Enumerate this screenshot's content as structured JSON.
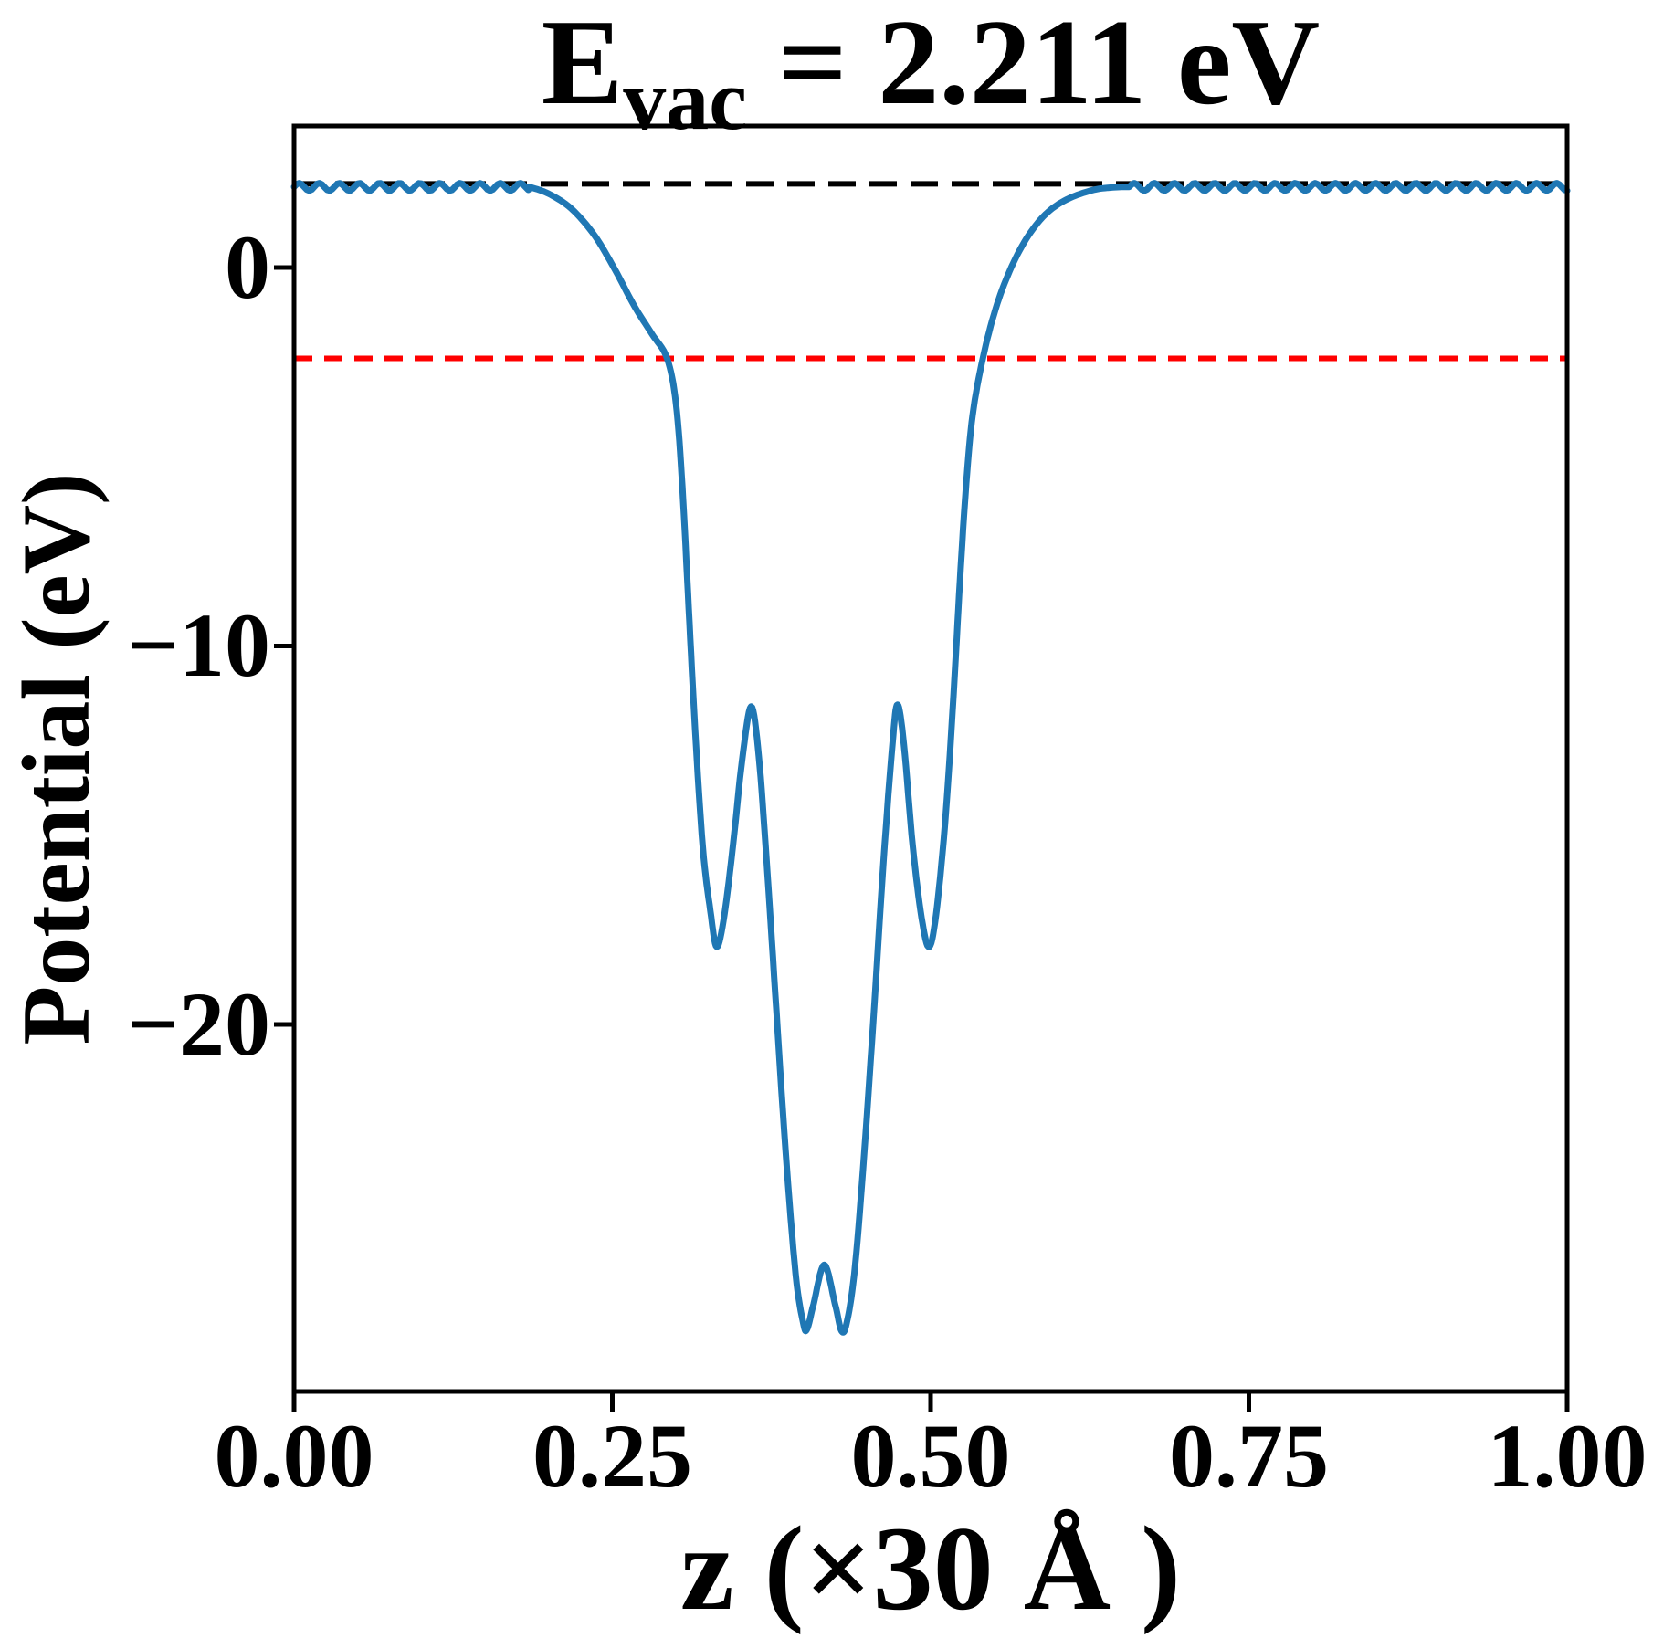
{
  "chart_data": {
    "type": "line",
    "title": {
      "prefix": "E",
      "subscript": "vac",
      "rest": " = 2.211 eV",
      "full": "E_vac = 2.211 eV"
    },
    "xlabel": "z (×30 Å )",
    "ylabel": "Potential (eV)",
    "xlim": [
      0,
      1
    ],
    "ylim": [
      -29.7,
      3.74
    ],
    "grid": false,
    "legend": "none",
    "x_ticks": {
      "values": [
        0,
        0.25,
        0.5,
        0.75,
        1.0
      ],
      "labels": [
        "0.00",
        "0.25",
        "0.50",
        "0.75",
        "1.00"
      ]
    },
    "y_ticks": {
      "values": [
        0,
        -10,
        -20
      ],
      "labels": [
        "0",
        "−10",
        "−20"
      ]
    },
    "colors": {
      "curve": "#1f77b4",
      "vacuum_line": "#000000",
      "reference_line": "#ff0000",
      "axes": "#000000"
    },
    "vacuum_energy_eV": 2.211,
    "reference_lines": [
      {
        "name": "vacuum-level",
        "value": 2.211,
        "color": "#000000",
        "style": "dashed",
        "dash": "30 15"
      },
      {
        "name": "fermi-level",
        "value": -2.4,
        "color": "#ff0000",
        "style": "dashed",
        "dash": "20 13"
      }
    ],
    "series": [
      {
        "name": "planar-averaged-potential",
        "color": "#1f77b4",
        "plateau": {
          "level": 2.211,
          "draw_mean": 2.13,
          "ripple_amplitude": 0.1,
          "ripple_period": 0.0158,
          "segments": [
            [
              0,
              0.185
            ],
            [
              0.656,
              1.0
            ]
          ]
        },
        "well_points": [
          [
            0.185,
            2.13
          ],
          [
            0.2,
            1.95
          ],
          [
            0.218,
            1.55
          ],
          [
            0.236,
            0.85
          ],
          [
            0.252,
            -0.05
          ],
          [
            0.267,
            -1.0
          ],
          [
            0.281,
            -1.75
          ],
          [
            0.293,
            -2.4
          ],
          [
            0.3,
            -3.6
          ],
          [
            0.305,
            -5.8
          ],
          [
            0.31,
            -9.0
          ],
          [
            0.315,
            -12.2
          ],
          [
            0.321,
            -15.3
          ],
          [
            0.327,
            -17.0
          ],
          [
            0.332,
            -17.95
          ],
          [
            0.338,
            -17.1
          ],
          [
            0.345,
            -15.2
          ],
          [
            0.352,
            -13.0
          ],
          [
            0.359,
            -11.6
          ],
          [
            0.365,
            -12.9
          ],
          [
            0.371,
            -15.6
          ],
          [
            0.378,
            -19.2
          ],
          [
            0.386,
            -23.3
          ],
          [
            0.394,
            -26.6
          ],
          [
            0.4,
            -27.9
          ],
          [
            0.403,
            -28.05
          ],
          [
            0.408,
            -27.4
          ],
          [
            0.4165,
            -26.35
          ],
          [
            0.425,
            -27.4
          ],
          [
            0.43,
            -28.1
          ],
          [
            0.434,
            -27.9
          ],
          [
            0.44,
            -26.6
          ],
          [
            0.447,
            -23.8
          ],
          [
            0.455,
            -19.9
          ],
          [
            0.463,
            -15.7
          ],
          [
            0.47,
            -12.6
          ],
          [
            0.474,
            -11.55
          ],
          [
            0.479,
            -12.6
          ],
          [
            0.486,
            -15.3
          ],
          [
            0.493,
            -17.2
          ],
          [
            0.499,
            -17.95
          ],
          [
            0.505,
            -16.9
          ],
          [
            0.512,
            -14.4
          ],
          [
            0.518,
            -11.3
          ],
          [
            0.523,
            -8.3
          ],
          [
            0.528,
            -5.7
          ],
          [
            0.533,
            -3.9
          ],
          [
            0.541,
            -2.4
          ],
          [
            0.551,
            -1.1
          ],
          [
            0.562,
            -0.1
          ],
          [
            0.575,
            0.75
          ],
          [
            0.59,
            1.4
          ],
          [
            0.607,
            1.8
          ],
          [
            0.628,
            2.05
          ],
          [
            0.645,
            2.12
          ],
          [
            0.656,
            2.13
          ]
        ]
      }
    ]
  }
}
